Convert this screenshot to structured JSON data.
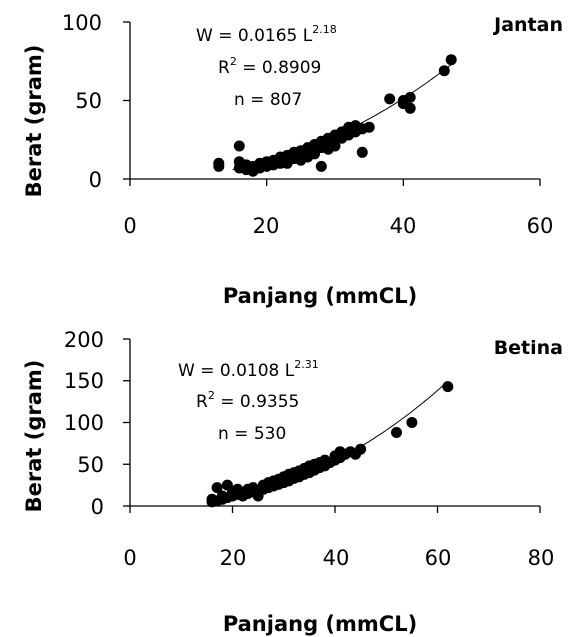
{
  "chart_data": [
    {
      "type": "scatter",
      "panel_label": "Jantan",
      "xlabel": "Panjang (mmCL)",
      "ylabel": "Berat (gram)",
      "xlim": [
        0,
        60
      ],
      "ylim": [
        0,
        100
      ],
      "xticks": [
        "0",
        "20",
        "40",
        "60"
      ],
      "yticks": [
        "0",
        "50",
        "100"
      ],
      "equation": {
        "prefix": "W = 0.0165 L",
        "exponent": "2.18"
      },
      "r2": {
        "prefix": "R",
        "sup": "2",
        "suffix": " = 0.8909"
      },
      "n_text": "n = 807",
      "fit": {
        "a": 0.0165,
        "b": 2.18,
        "x_range": [
          15,
          47
        ]
      },
      "points": [
        [
          13,
          8
        ],
        [
          13,
          10
        ],
        [
          16,
          21
        ],
        [
          16,
          11
        ],
        [
          16,
          7
        ],
        [
          17,
          6
        ],
        [
          17,
          9
        ],
        [
          18,
          5
        ],
        [
          18,
          8
        ],
        [
          19,
          7
        ],
        [
          19,
          10
        ],
        [
          20,
          8
        ],
        [
          20,
          11
        ],
        [
          21,
          9
        ],
        [
          21,
          12
        ],
        [
          22,
          10
        ],
        [
          22,
          14
        ],
        [
          23,
          12
        ],
        [
          23,
          15
        ],
        [
          23,
          10
        ],
        [
          24,
          13
        ],
        [
          24,
          17
        ],
        [
          25,
          15
        ],
        [
          25,
          18
        ],
        [
          25,
          12
        ],
        [
          26,
          16
        ],
        [
          26,
          20
        ],
        [
          26,
          14
        ],
        [
          27,
          18
        ],
        [
          27,
          22
        ],
        [
          27,
          16
        ],
        [
          28,
          20
        ],
        [
          28,
          24
        ],
        [
          28,
          8
        ],
        [
          29,
          22
        ],
        [
          29,
          26
        ],
        [
          29,
          19
        ],
        [
          30,
          24
        ],
        [
          30,
          28
        ],
        [
          30,
          21
        ],
        [
          31,
          26
        ],
        [
          31,
          30
        ],
        [
          32,
          28
        ],
        [
          32,
          33
        ],
        [
          33,
          30
        ],
        [
          33,
          34
        ],
        [
          34,
          32
        ],
        [
          34,
          17
        ],
        [
          35,
          33
        ],
        [
          38,
          51
        ],
        [
          40,
          48
        ],
        [
          40,
          50
        ],
        [
          41,
          52
        ],
        [
          41,
          45
        ],
        [
          46,
          69
        ],
        [
          47,
          76
        ]
      ]
    },
    {
      "type": "scatter",
      "panel_label": "Betina",
      "xlabel": "Panjang (mmCL)",
      "ylabel": "Berat (gram)",
      "xlim": [
        0,
        80
      ],
      "ylim": [
        0,
        200
      ],
      "xticks": [
        "0",
        "20",
        "40",
        "60",
        "80"
      ],
      "yticks": [
        "0",
        "50",
        "100",
        "150",
        "200"
      ],
      "equation": {
        "prefix": "W = 0.0108 L",
        "exponent": "2.31"
      },
      "r2": {
        "prefix": "R",
        "sup": "2",
        "suffix": " = 0.9355"
      },
      "n_text": "n = 530",
      "fit": {
        "a": 0.0108,
        "b": 2.31,
        "x_range": [
          16,
          62
        ]
      },
      "points": [
        [
          16,
          5
        ],
        [
          16,
          8
        ],
        [
          17,
          6
        ],
        [
          17,
          22
        ],
        [
          18,
          8
        ],
        [
          18,
          12
        ],
        [
          19,
          10
        ],
        [
          19,
          25
        ],
        [
          20,
          12
        ],
        [
          20,
          18
        ],
        [
          21,
          14
        ],
        [
          21,
          20
        ],
        [
          22,
          12
        ],
        [
          22,
          16
        ],
        [
          23,
          15
        ],
        [
          23,
          20
        ],
        [
          24,
          17
        ],
        [
          24,
          22
        ],
        [
          25,
          18
        ],
        [
          25,
          12
        ],
        [
          26,
          20
        ],
        [
          26,
          25
        ],
        [
          27,
          22
        ],
        [
          27,
          28
        ],
        [
          28,
          24
        ],
        [
          28,
          30
        ],
        [
          29,
          26
        ],
        [
          29,
          32
        ],
        [
          30,
          28
        ],
        [
          30,
          35
        ],
        [
          31,
          30
        ],
        [
          31,
          38
        ],
        [
          32,
          33
        ],
        [
          32,
          40
        ],
        [
          33,
          35
        ],
        [
          33,
          42
        ],
        [
          34,
          38
        ],
        [
          34,
          45
        ],
        [
          35,
          40
        ],
        [
          35,
          48
        ],
        [
          36,
          43
        ],
        [
          36,
          50
        ],
        [
          37,
          46
        ],
        [
          37,
          52
        ],
        [
          38,
          48
        ],
        [
          38,
          55
        ],
        [
          39,
          52
        ],
        [
          40,
          55
        ],
        [
          40,
          60
        ],
        [
          41,
          58
        ],
        [
          41,
          65
        ],
        [
          42,
          62
        ],
        [
          43,
          65
        ],
        [
          44,
          62
        ],
        [
          45,
          68
        ],
        [
          52,
          88
        ],
        [
          55,
          100
        ],
        [
          62,
          143
        ]
      ]
    }
  ]
}
